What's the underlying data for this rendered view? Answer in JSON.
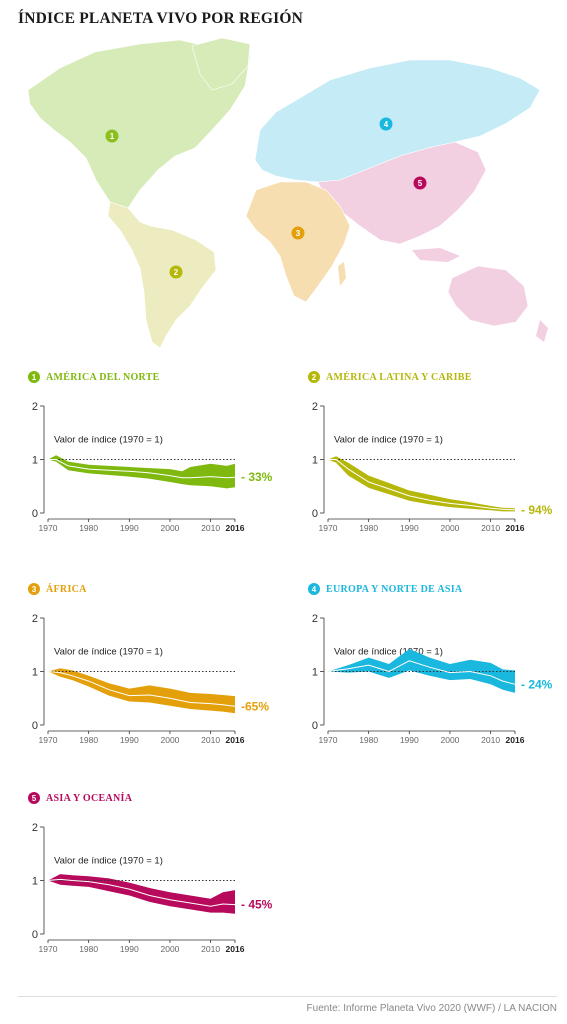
{
  "title": "ÍNDICE PLANETA VIVO POR REGIÓN",
  "source": "Fuente: Informe Planeta Vivo 2020 (WWF) / LA NACION",
  "map": {
    "regions": [
      {
        "num": "1",
        "color": "#8cc020",
        "fill": "#d7ebb8"
      },
      {
        "num": "2",
        "color": "#b5b70a",
        "fill": "#ececc0"
      },
      {
        "num": "3",
        "color": "#e3a00a",
        "fill": "#f7deb1"
      },
      {
        "num": "4",
        "color": "#1ab7de",
        "fill": "#c4ebf6"
      },
      {
        "num": "5",
        "color": "#b70a5c",
        "fill": "#f3cfe2"
      }
    ]
  },
  "chart_data": [
    {
      "type": "area",
      "num": "1",
      "name": "AMÉRICA DEL NORTE",
      "color": "#7fb80e",
      "annotation": "Valor de índice (1970 = 1)",
      "change": "- 33%",
      "ylim": [
        0,
        2
      ],
      "yticks": [
        "0",
        "1",
        "2"
      ],
      "xticks": [
        "1970",
        "1980",
        "1990",
        "2000",
        "2010",
        "2016"
      ],
      "xlim": [
        1970,
        2016
      ],
      "x": [
        1970,
        1972,
        1975,
        1980,
        1985,
        1990,
        1995,
        2000,
        2003,
        2005,
        2010,
        2014,
        2016
      ],
      "value": [
        1.0,
        1.0,
        0.88,
        0.82,
        0.8,
        0.78,
        0.75,
        0.7,
        0.66,
        0.66,
        0.68,
        0.66,
        0.67
      ],
      "upper": [
        1.0,
        1.08,
        0.96,
        0.9,
        0.88,
        0.86,
        0.84,
        0.82,
        0.78,
        0.86,
        0.92,
        0.88,
        0.92
      ],
      "lower": [
        1.0,
        0.96,
        0.8,
        0.74,
        0.71,
        0.68,
        0.64,
        0.58,
        0.54,
        0.52,
        0.5,
        0.46,
        0.48
      ]
    },
    {
      "type": "area",
      "num": "2",
      "name": "AMÉRICA LATINA Y CARIBE",
      "color": "#b5b70a",
      "annotation": "Valor de índice (1970 = 1)",
      "change": "- 94%",
      "ylim": [
        0,
        2
      ],
      "yticks": [
        "0",
        "1",
        "2"
      ],
      "xticks": [
        "1970",
        "1980",
        "1990",
        "2000",
        "2010",
        "2016"
      ],
      "xlim": [
        1970,
        2016
      ],
      "x": [
        1970,
        1972,
        1975,
        1980,
        1985,
        1990,
        1995,
        2000,
        2005,
        2010,
        2013,
        2016
      ],
      "value": [
        1.0,
        1.0,
        0.82,
        0.58,
        0.45,
        0.32,
        0.24,
        0.18,
        0.14,
        0.09,
        0.07,
        0.06
      ],
      "upper": [
        1.0,
        1.06,
        0.94,
        0.7,
        0.56,
        0.42,
        0.34,
        0.26,
        0.2,
        0.13,
        0.1,
        0.09
      ],
      "lower": [
        1.0,
        0.94,
        0.7,
        0.47,
        0.35,
        0.23,
        0.16,
        0.11,
        0.08,
        0.05,
        0.03,
        0.03
      ]
    },
    {
      "type": "area",
      "num": "3",
      "name": "ÁFRICA",
      "color": "#e3a00a",
      "annotation": "Valor de índice (1970 = 1)",
      "change": "-65%",
      "ylim": [
        0,
        2
      ],
      "yticks": [
        "0",
        "1",
        "2"
      ],
      "xticks": [
        "1970",
        "1980",
        "1990",
        "2000",
        "2010",
        "2016"
      ],
      "xlim": [
        1970,
        2016
      ],
      "x": [
        1970,
        1973,
        1976,
        1980,
        1985,
        1990,
        1995,
        2000,
        2005,
        2010,
        2013,
        2016
      ],
      "value": [
        1.0,
        0.98,
        0.92,
        0.82,
        0.66,
        0.55,
        0.56,
        0.5,
        0.42,
        0.4,
        0.38,
        0.35
      ],
      "upper": [
        1.0,
        1.06,
        1.02,
        0.92,
        0.78,
        0.68,
        0.74,
        0.68,
        0.6,
        0.58,
        0.56,
        0.54
      ],
      "lower": [
        1.0,
        0.9,
        0.84,
        0.72,
        0.55,
        0.44,
        0.42,
        0.36,
        0.3,
        0.27,
        0.25,
        0.22
      ]
    },
    {
      "type": "area",
      "num": "4",
      "name": "EUROPA Y NORTE DE ASIA",
      "color": "#1ab7de",
      "annotation": "Valor de índice (1970 = 1)",
      "change": "- 24%",
      "ylim": [
        0,
        2
      ],
      "yticks": [
        "0",
        "1",
        "2"
      ],
      "xticks": [
        "1970",
        "1980",
        "1990",
        "2000",
        "2010",
        "2016"
      ],
      "xlim": [
        1970,
        2016
      ],
      "x": [
        1970,
        1975,
        1980,
        1985,
        1990,
        1995,
        2000,
        2005,
        2010,
        2013,
        2016
      ],
      "value": [
        1.0,
        1.05,
        1.12,
        1.0,
        1.2,
        1.08,
        0.98,
        1.0,
        0.92,
        0.82,
        0.76
      ],
      "upper": [
        1.0,
        1.12,
        1.26,
        1.14,
        1.42,
        1.26,
        1.14,
        1.22,
        1.16,
        1.04,
        1.02
      ],
      "lower": [
        1.0,
        0.98,
        1.0,
        0.88,
        1.02,
        0.92,
        0.84,
        0.86,
        0.76,
        0.66,
        0.6
      ]
    },
    {
      "type": "area",
      "num": "5",
      "name": "ASIA Y OCEANÍA",
      "color": "#b70a5c",
      "annotation": "Valor de índice (1970 = 1)",
      "change": "- 45%",
      "ylim": [
        0,
        2
      ],
      "yticks": [
        "0",
        "1",
        "2"
      ],
      "xticks": [
        "1970",
        "1980",
        "1990",
        "2000",
        "2010",
        "2016"
      ],
      "xlim": [
        1970,
        2016
      ],
      "x": [
        1970,
        1973,
        1976,
        1980,
        1985,
        1990,
        1995,
        2000,
        2005,
        2010,
        2013,
        2016
      ],
      "value": [
        1.0,
        1.02,
        1.0,
        0.98,
        0.92,
        0.84,
        0.72,
        0.64,
        0.58,
        0.52,
        0.56,
        0.55
      ],
      "upper": [
        1.0,
        1.12,
        1.1,
        1.08,
        1.04,
        0.96,
        0.86,
        0.78,
        0.72,
        0.66,
        0.78,
        0.82
      ],
      "lower": [
        1.0,
        0.92,
        0.9,
        0.88,
        0.8,
        0.72,
        0.6,
        0.52,
        0.46,
        0.4,
        0.4,
        0.38
      ]
    }
  ]
}
